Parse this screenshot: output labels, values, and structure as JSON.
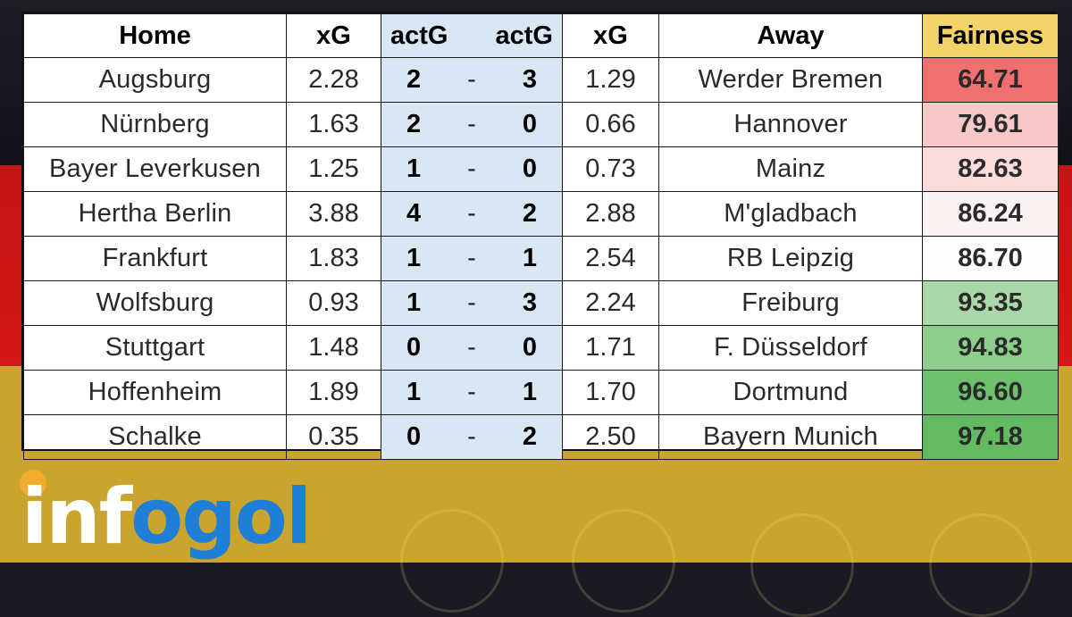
{
  "table": {
    "headers": {
      "home": "Home",
      "xg_home": "xG",
      "actg_home": "actG",
      "actg_away": "actG",
      "xg_away": "xG",
      "away": "Away",
      "fairness": "Fairness"
    },
    "rows": [
      {
        "home": "Augsburg",
        "xg_home": "2.28",
        "goals_home": "2",
        "sep": "-",
        "goals_away": "3",
        "xg_away": "1.29",
        "away": "Werder Bremen",
        "fairness": "64.71",
        "fairness_color": "#f07070"
      },
      {
        "home": "Nürnberg",
        "xg_home": "1.63",
        "goals_home": "2",
        "sep": "-",
        "goals_away": "0",
        "xg_away": "0.66",
        "away": "Hannover",
        "fairness": "79.61",
        "fairness_color": "#f7c8c8"
      },
      {
        "home": "Bayer Leverkusen",
        "xg_home": "1.25",
        "goals_home": "1",
        "sep": "-",
        "goals_away": "0",
        "xg_away": "0.73",
        "away": "Mainz",
        "fairness": "82.63",
        "fairness_color": "#fadcdc"
      },
      {
        "home": "Hertha Berlin",
        "xg_home": "3.88",
        "goals_home": "4",
        "sep": "-",
        "goals_away": "2",
        "xg_away": "2.88",
        "away": "M'gladbach",
        "fairness": "86.24",
        "fairness_color": "#fbf3f3"
      },
      {
        "home": "Frankfurt",
        "xg_home": "1.83",
        "goals_home": "1",
        "sep": "-",
        "goals_away": "1",
        "xg_away": "2.54",
        "away": "RB Leipzig",
        "fairness": "86.70",
        "fairness_color": "#fdfdfd"
      },
      {
        "home": "Wolfsburg",
        "xg_home": "0.93",
        "goals_home": "1",
        "sep": "-",
        "goals_away": "3",
        "xg_away": "2.24",
        "away": "Freiburg",
        "fairness": "93.35",
        "fairness_color": "#a9d9a8"
      },
      {
        "home": "Stuttgart",
        "xg_home": "1.48",
        "goals_home": "0",
        "sep": "-",
        "goals_away": "0",
        "xg_away": "1.71",
        "away": "F. Düsseldorf",
        "fairness": "94.83",
        "fairness_color": "#8dce8c"
      },
      {
        "home": "Hoffenheim",
        "xg_home": "1.89",
        "goals_home": "1",
        "sep": "-",
        "goals_away": "1",
        "xg_away": "1.70",
        "away": "Dortmund",
        "fairness": "96.60",
        "fairness_color": "#6fc06d"
      },
      {
        "home": "Schalke",
        "xg_home": "0.35",
        "goals_home": "0",
        "sep": "-",
        "goals_away": "2",
        "xg_away": "2.50",
        "away": "Bayern Munich",
        "fairness": "97.18",
        "fairness_color": "#63ba61"
      }
    ]
  },
  "logo": {
    "text_white": "inf",
    "text_blue": "ogol",
    "icon": "football-icon"
  },
  "colors": {
    "flag_black": "#1b1a22",
    "flag_red": "#d01616",
    "flag_gold": "#c9a530",
    "score_bg": "#d9e6f3",
    "fairness_header": "#f2d36a",
    "brand_blue": "#1f7fd6",
    "brand_orange": "#f0a72b"
  }
}
